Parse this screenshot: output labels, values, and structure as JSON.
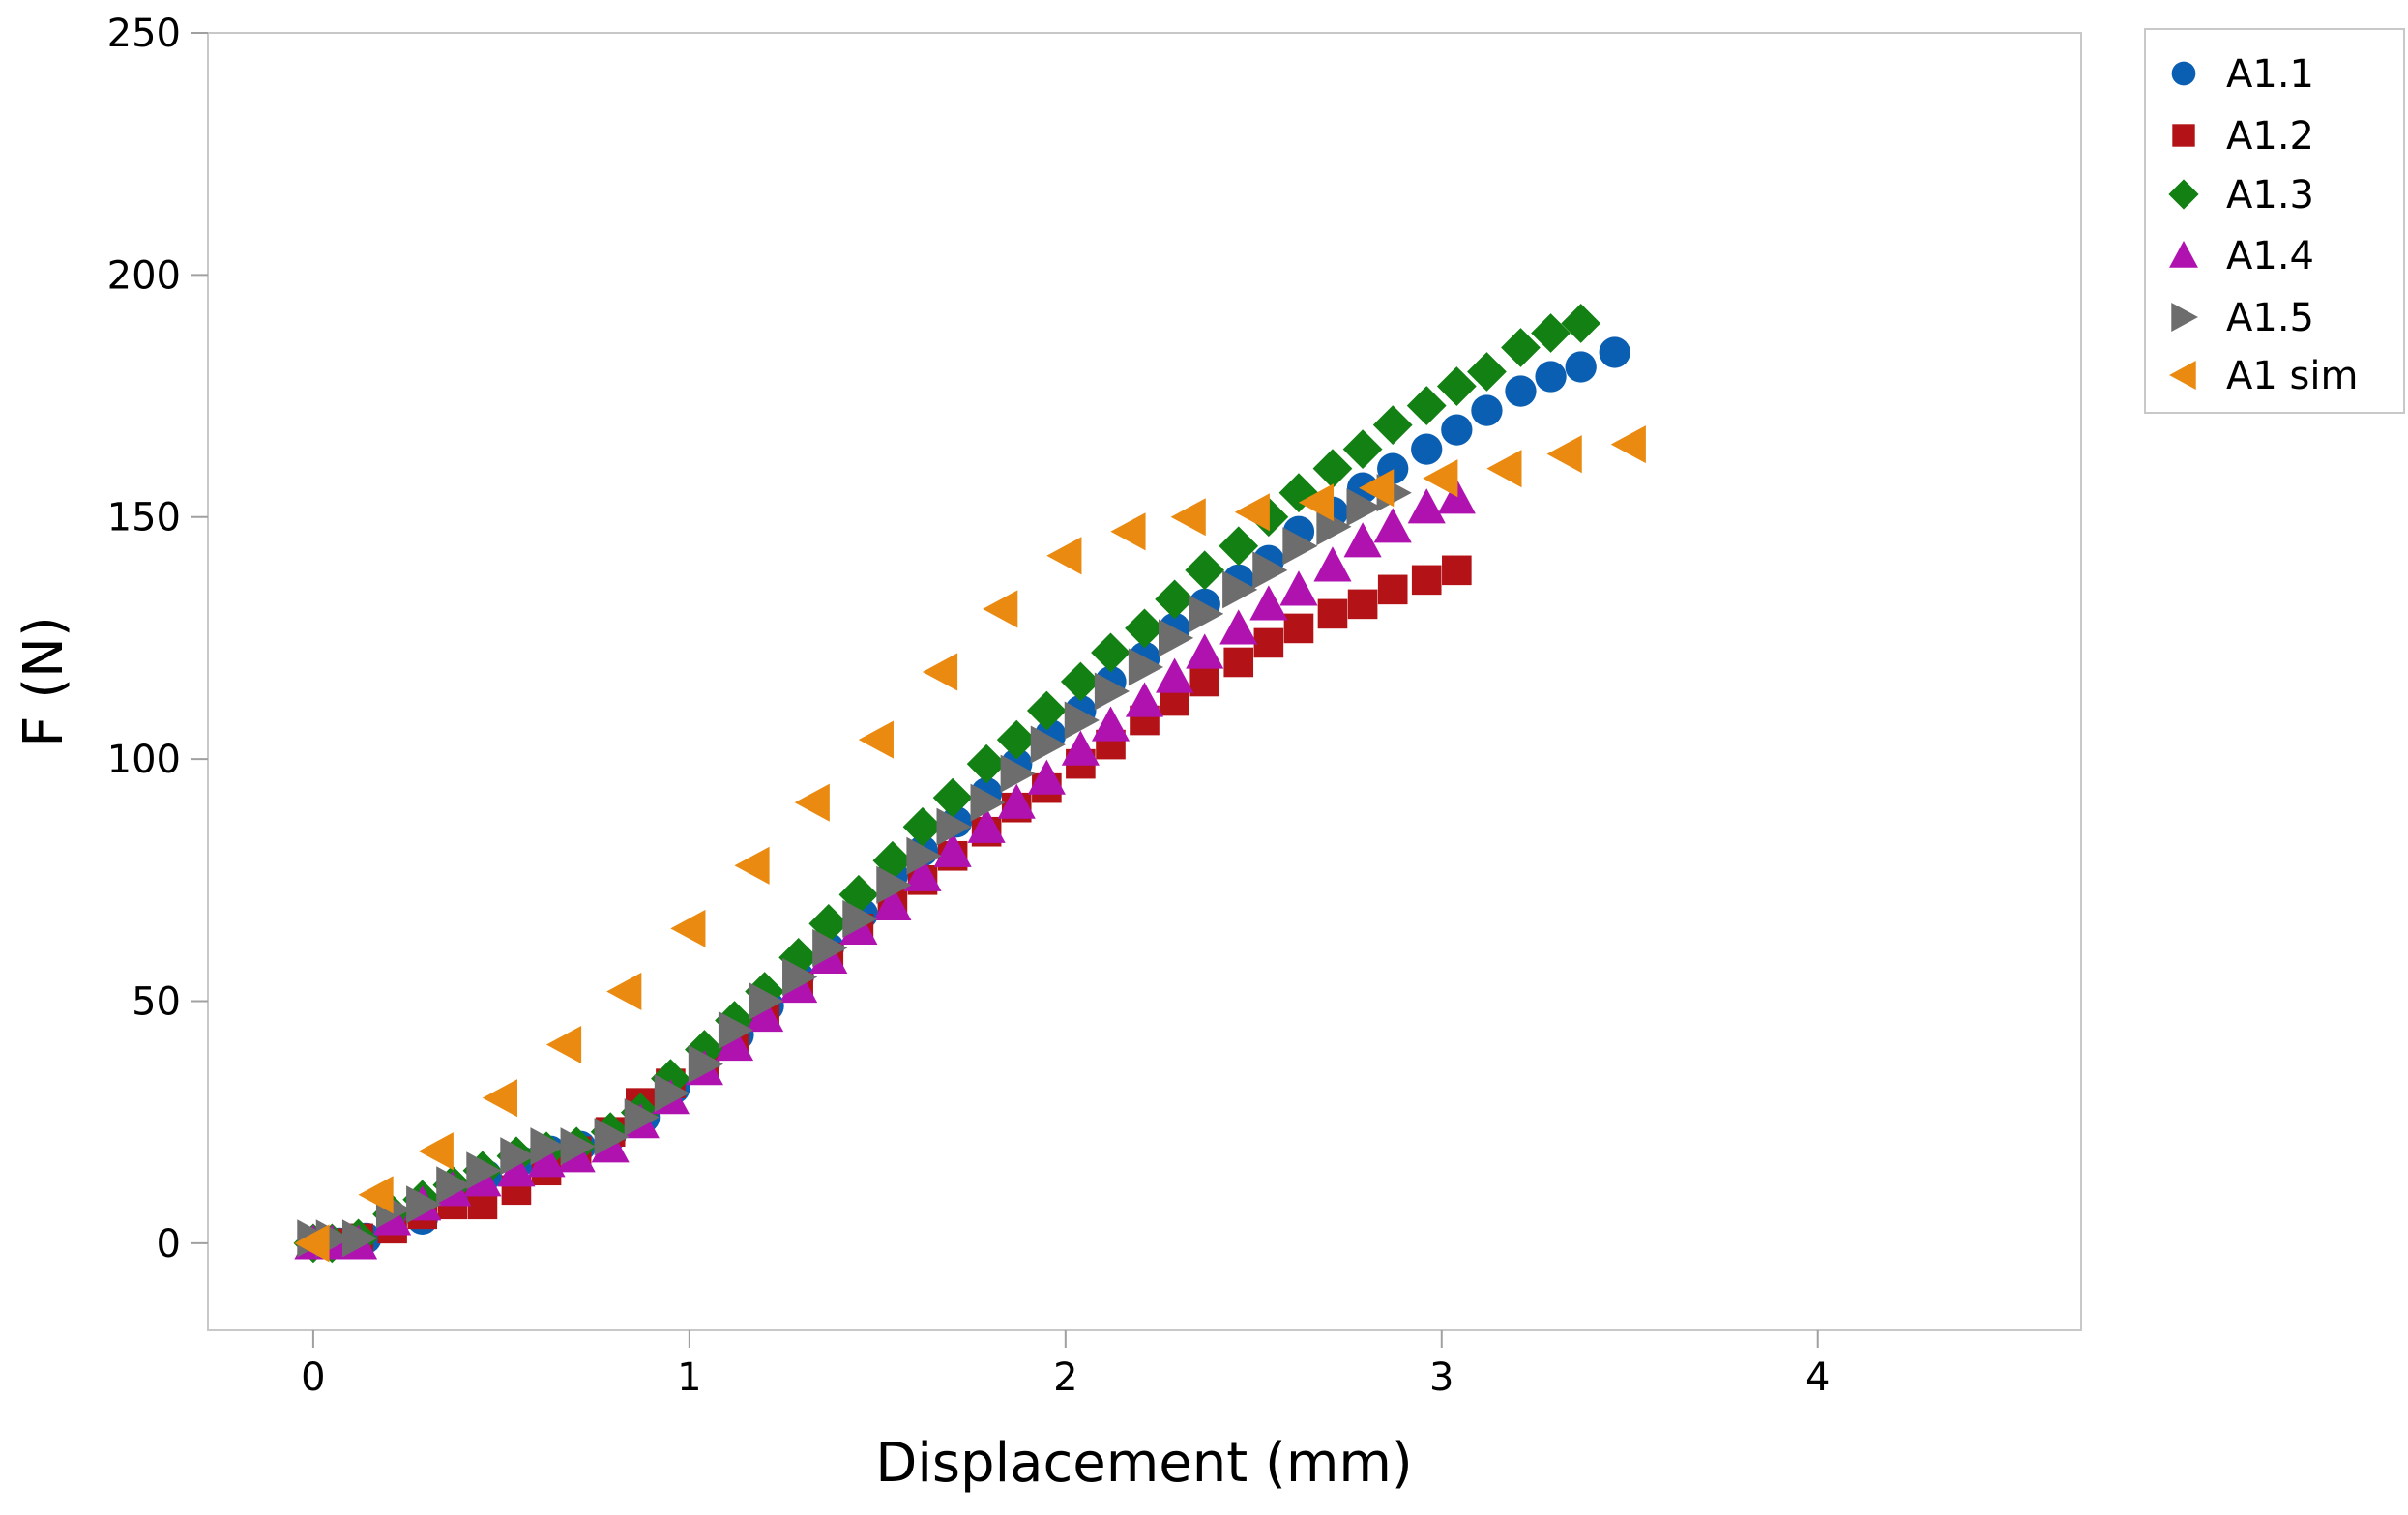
{
  "chart_data": {
    "type": "scatter",
    "xlabel": "Displacement (mm)",
    "ylabel": "F (N)",
    "xlim": [
      -0.28,
      4.7
    ],
    "ylim": [
      -18,
      250
    ],
    "xticks": [
      0,
      1,
      2,
      3,
      4
    ],
    "yticks": [
      0,
      50,
      100,
      150,
      200,
      250
    ],
    "grid": false,
    "legend_position": "outside-right-top",
    "series": [
      {
        "name": "A1.1",
        "marker": "circle",
        "color": "#0b5fb3",
        "x": [
          0.0,
          0.07,
          0.14,
          0.29,
          0.38,
          0.46,
          0.55,
          0.63,
          0.71,
          0.79,
          0.88,
          0.96,
          1.04,
          1.13,
          1.21,
          1.29,
          1.37,
          1.46,
          1.54,
          1.62,
          1.71,
          1.79,
          1.87,
          1.96,
          2.04,
          2.12,
          2.21,
          2.29,
          2.37,
          2.46,
          2.54,
          2.62,
          2.71,
          2.79,
          2.87,
          2.96,
          3.04,
          3.12,
          3.21,
          3.29,
          3.37,
          3.46
        ],
        "y": [
          0,
          0,
          1,
          5,
          10,
          14,
          17,
          19,
          20,
          22,
          26,
          32,
          37,
          43,
          49,
          55,
          61,
          68,
          76,
          81,
          87,
          93,
          99,
          105,
          110,
          116,
          121,
          127,
          132,
          137,
          141,
          147,
          151,
          156,
          160,
          164,
          168,
          172,
          176,
          179,
          181,
          184
        ]
      },
      {
        "name": "A1.2",
        "marker": "square",
        "color": "#b31217",
        "x": [
          0.0,
          0.05,
          0.12,
          0.21,
          0.29,
          0.37,
          0.45,
          0.54,
          0.62,
          0.7,
          0.79,
          0.87,
          0.95,
          1.04,
          1.12,
          1.2,
          1.29,
          1.37,
          1.45,
          1.54,
          1.62,
          1.7,
          1.79,
          1.87,
          1.95,
          2.04,
          2.12,
          2.21,
          2.29,
          2.37,
          2.46,
          2.54,
          2.62,
          2.71,
          2.79,
          2.87,
          2.96,
          3.04
        ],
        "y": [
          0,
          0,
          1,
          3,
          6,
          8,
          8,
          11,
          15,
          19,
          23,
          29,
          33,
          37,
          41,
          47,
          53,
          59,
          65,
          70,
          75,
          80,
          85,
          90,
          94,
          99,
          103,
          108,
          112,
          116,
          120,
          124,
          127,
          130,
          132,
          135,
          137,
          139
        ]
      },
      {
        "name": "A1.3",
        "marker": "diamond",
        "color": "#128012",
        "x": [
          0.0,
          0.05,
          0.12,
          0.21,
          0.29,
          0.37,
          0.45,
          0.54,
          0.62,
          0.7,
          0.79,
          0.87,
          0.95,
          1.04,
          1.12,
          1.2,
          1.29,
          1.37,
          1.45,
          1.54,
          1.62,
          1.7,
          1.79,
          1.87,
          1.95,
          2.04,
          2.12,
          2.21,
          2.29,
          2.37,
          2.46,
          2.54,
          2.62,
          2.71,
          2.79,
          2.87,
          2.96,
          3.04,
          3.12,
          3.21,
          3.29,
          3.37
        ],
        "y": [
          0,
          0,
          1,
          6,
          9,
          12,
          15,
          18,
          19,
          20,
          23,
          27,
          34,
          40,
          46,
          52,
          59,
          66,
          72,
          79,
          86,
          92,
          99,
          104,
          110,
          116,
          122,
          127,
          133,
          139,
          144,
          150,
          155,
          160,
          164,
          169,
          173,
          177,
          180,
          185,
          188,
          190
        ]
      },
      {
        "name": "A1.4",
        "marker": "triangle-up",
        "color": "#b012b0",
        "x": [
          0.0,
          0.05,
          0.12,
          0.21,
          0.29,
          0.37,
          0.45,
          0.54,
          0.62,
          0.7,
          0.79,
          0.87,
          0.95,
          1.04,
          1.12,
          1.2,
          1.29,
          1.37,
          1.45,
          1.54,
          1.62,
          1.7,
          1.79,
          1.87,
          1.95,
          2.04,
          2.12,
          2.21,
          2.29,
          2.37,
          2.46,
          2.54,
          2.62,
          2.71,
          2.79,
          2.87,
          2.96,
          3.04
        ],
        "y": [
          0,
          0,
          0,
          5,
          8,
          11,
          13,
          15,
          17,
          18,
          20,
          25,
          30,
          36,
          41,
          47,
          53,
          59,
          65,
          70,
          76,
          81,
          86,
          91,
          96,
          102,
          107,
          112,
          117,
          122,
          127,
          132,
          135,
          140,
          145,
          148,
          152,
          154
        ]
      },
      {
        "name": "A1.5",
        "marker": "triangle-right",
        "color": "#6d6d6d",
        "x": [
          0.0,
          0.05,
          0.12,
          0.21,
          0.29,
          0.37,
          0.45,
          0.54,
          0.62,
          0.7,
          0.79,
          0.87,
          0.95,
          1.04,
          1.12,
          1.2,
          1.29,
          1.37,
          1.45,
          1.54,
          1.62,
          1.7,
          1.79,
          1.87,
          1.95,
          2.04,
          2.12,
          2.21,
          2.29,
          2.37,
          2.46,
          2.54,
          2.62,
          2.71,
          2.79,
          2.87
        ],
        "y": [
          1,
          1,
          1,
          7,
          8,
          12,
          15,
          18,
          20,
          20,
          22,
          26,
          31,
          37,
          44,
          50,
          55,
          61,
          67,
          74,
          80,
          86,
          91,
          97,
          103,
          108,
          114,
          119,
          125,
          130,
          135,
          139,
          144,
          148,
          152,
          155
        ]
      },
      {
        "name": "A1 sim",
        "marker": "triangle-left",
        "color": "#ea8a10",
        "x": [
          0.0,
          0.17,
          0.33,
          0.5,
          0.67,
          0.83,
          1.0,
          1.17,
          1.33,
          1.5,
          1.67,
          1.83,
          2.0,
          2.17,
          2.33,
          2.5,
          2.67,
          2.83,
          3.0,
          3.17,
          3.33,
          3.5
        ],
        "y": [
          0,
          10,
          19,
          30,
          41,
          52,
          65,
          78,
          91,
          104,
          118,
          131,
          142,
          147,
          150,
          151,
          153,
          156,
          158,
          160,
          163,
          165
        ]
      }
    ]
  }
}
